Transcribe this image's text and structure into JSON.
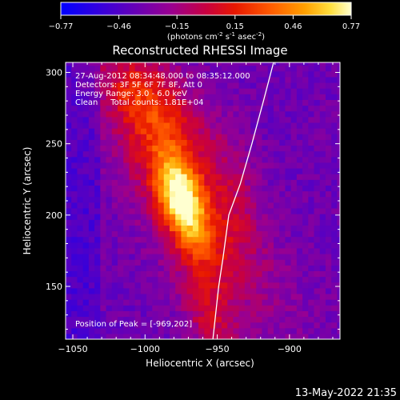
{
  "colors": {
    "background": "#000000",
    "foreground": "#ffffff",
    "colormap": [
      "#0000ff",
      "#5a00c8",
      "#8c00a0",
      "#c00060",
      "#e02000",
      "#ff6000",
      "#ffa000",
      "#ffe040",
      "#ffffc8"
    ]
  },
  "colorbar": {
    "ticks": [
      "-0.77",
      "-0.46",
      "-0.15",
      "0.15",
      "0.46",
      "0.77"
    ],
    "unit_parts": [
      "(photons cm",
      "-2",
      " s",
      "-1",
      " asec",
      "-2",
      ")"
    ]
  },
  "chart_data": {
    "type": "heatmap",
    "title": "Reconstructed RHESSI Image",
    "xlabel": "Heliocentric X (arcsec)",
    "ylabel": "Heliocentric Y (arcsec)",
    "xlim": [
      -1055,
      -865
    ],
    "ylim": [
      113,
      307
    ],
    "x_ticks": [
      -1050,
      -1000,
      -950,
      -900
    ],
    "y_ticks": [
      150,
      200,
      250,
      300
    ],
    "x_tick_labels": [
      "−1050",
      "−1000",
      "−950",
      "−900"
    ],
    "y_tick_labels": [
      "150",
      "200",
      "250",
      "300"
    ],
    "value_range": [
      -0.77,
      0.77
    ],
    "annotations": [
      "27-Aug-2012 08:34:48.000 to 08:35:12.000",
      "Detectors: 3F 5F 6F 7F 8F, Att 0",
      "Energy Range: 3.0 - 6.0 keV",
      "Clean     Total counts: 1.81E+04"
    ],
    "peak_label": "Position of Peak = [-969,202]",
    "peak_position": [
      -969,
      202
    ],
    "limb_points": [
      [
        -911,
        307
      ],
      [
        -918,
        280
      ],
      [
        -926,
        250
      ],
      [
        -934,
        222
      ],
      [
        -942,
        200
      ],
      [
        -946,
        170
      ],
      [
        -949,
        150
      ],
      [
        -953,
        113
      ]
    ],
    "sources": [
      {
        "x": -975,
        "y": 212,
        "amplitude": 0.82,
        "sx": 10,
        "sy": 16
      },
      {
        "x": -985,
        "y": 240,
        "amplitude": 0.45,
        "sx": 22,
        "sy": 32
      },
      {
        "x": -1005,
        "y": 285,
        "amplitude": 0.35,
        "sx": 20,
        "sy": 18
      },
      {
        "x": -960,
        "y": 175,
        "amplitude": 0.3,
        "sx": 14,
        "sy": 22
      },
      {
        "x": -938,
        "y": 210,
        "amplitude": 0.22,
        "sx": 14,
        "sy": 30
      },
      {
        "x": -955,
        "y": 125,
        "amplitude": 0.25,
        "sx": 12,
        "sy": 14
      },
      {
        "x": -925,
        "y": 150,
        "amplitude": 0.12,
        "sx": 30,
        "sy": 30
      }
    ],
    "background_value": -0.35
  },
  "footer": {
    "timestamp": "13-May-2022 21:35"
  }
}
